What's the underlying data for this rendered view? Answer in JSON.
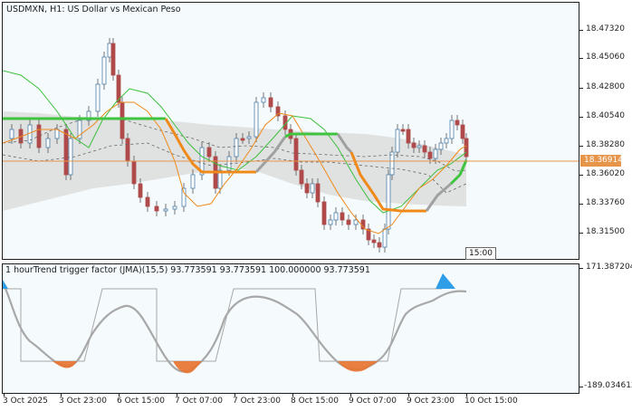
{
  "chart": {
    "title": "USDMXN, H1:  US Dollar vs Mexican Peso",
    "price_axis_labels": [
      "18.47320",
      "18.45060",
      "18.42800",
      "18.40540",
      "18.38280",
      "18.36020",
      "18.33760",
      "18.31500"
    ],
    "current_price": "18.36914",
    "time_tag": "15:00"
  },
  "indicator": {
    "title": "1 hourTrend trigger factor (JMA)(15,5) 93.773591 93.773591 100.000000 93.773591",
    "axis_top": "171.387204",
    "axis_bottom": "-189.034612"
  },
  "time_axis_labels": [
    "3 Oct 2025",
    "3 Oct 23:00",
    "6 Oct 15:00",
    "7 Oct 07:00",
    "7 Oct 23:00",
    "8 Oct 15:00",
    "9 Oct 07:00",
    "9 Oct 23:00",
    "10 Oct 15:00"
  ],
  "colors": {
    "bull_candle": "#4a7fa8",
    "bear_candle": "#b04a4a",
    "green_line": "#33c233",
    "orange_line": "#ef8a1a",
    "gray_line": "#a8a8a8",
    "band_fill": "#d9d9d9",
    "current_price": "#e6954b"
  }
}
